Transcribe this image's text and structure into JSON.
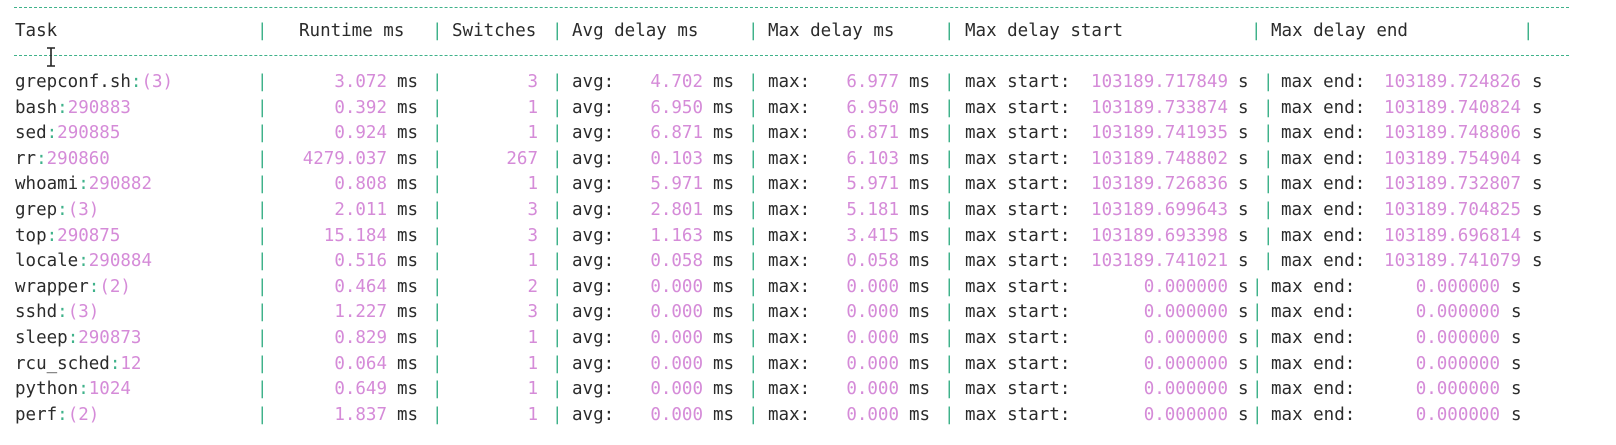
{
  "colors": {
    "separator": "#3fb28a",
    "value": "#d58bd8",
    "text": "#2b2b2b",
    "background": "#ffffff"
  },
  "header": {
    "task": "Task",
    "runtime": "Runtime ms",
    "switches": "Switches",
    "avg_delay": "Avg delay ms",
    "max_delay": "Max delay ms",
    "max_delay_start": "Max delay start",
    "max_delay_end": "Max delay end"
  },
  "labels": {
    "ms": "ms",
    "s": "s",
    "avg": "avg:",
    "max": "max:",
    "max_start": "max start:",
    "max_end": "max end:"
  },
  "rows": [
    {
      "name": "grepconf.sh",
      "sep": ":",
      "id": "(3)",
      "runtime": "3.072",
      "switches": "3",
      "avg": "4.702",
      "max": "6.977",
      "start": "103189.717849",
      "end": "103189.724826"
    },
    {
      "name": "bash",
      "sep": ":",
      "id": "290883",
      "runtime": "0.392",
      "switches": "1",
      "avg": "6.950",
      "max": "6.950",
      "start": "103189.733874",
      "end": "103189.740824"
    },
    {
      "name": "sed",
      "sep": ":",
      "id": "290885",
      "runtime": "0.924",
      "switches": "1",
      "avg": "6.871",
      "max": "6.871",
      "start": "103189.741935",
      "end": "103189.748806"
    },
    {
      "name": "rr",
      "sep": ":",
      "id": "290860",
      "runtime": "4279.037",
      "switches": "267",
      "avg": "0.103",
      "max": "6.103",
      "start": "103189.748802",
      "end": "103189.754904"
    },
    {
      "name": "whoami",
      "sep": ":",
      "id": "290882",
      "runtime": "0.808",
      "switches": "1",
      "avg": "5.971",
      "max": "5.971",
      "start": "103189.726836",
      "end": "103189.732807"
    },
    {
      "name": "grep",
      "sep": ":",
      "id": "(3)",
      "runtime": "2.011",
      "switches": "3",
      "avg": "2.801",
      "max": "5.181",
      "start": "103189.699643",
      "end": "103189.704825"
    },
    {
      "name": "top",
      "sep": ":",
      "id": "290875",
      "runtime": "15.184",
      "switches": "3",
      "avg": "1.163",
      "max": "3.415",
      "start": "103189.693398",
      "end": "103189.696814"
    },
    {
      "name": "locale",
      "sep": ":",
      "id": "290884",
      "runtime": "0.516",
      "switches": "1",
      "avg": "0.058",
      "max": "0.058",
      "start": "103189.741021",
      "end": "103189.741079"
    },
    {
      "name": "wrapper",
      "sep": ":",
      "id": "(2)",
      "runtime": "0.464",
      "switches": "2",
      "avg": "0.000",
      "max": "0.000",
      "start": "0.000000",
      "end": "0.000000"
    },
    {
      "name": "sshd",
      "sep": ":",
      "id": "(3)",
      "runtime": "1.227",
      "switches": "3",
      "avg": "0.000",
      "max": "0.000",
      "start": "0.000000",
      "end": "0.000000"
    },
    {
      "name": "sleep",
      "sep": ":",
      "id": "290873",
      "runtime": "0.829",
      "switches": "1",
      "avg": "0.000",
      "max": "0.000",
      "start": "0.000000",
      "end": "0.000000"
    },
    {
      "name": "rcu_sched",
      "sep": ":",
      "id": "12",
      "runtime": "0.064",
      "switches": "1",
      "avg": "0.000",
      "max": "0.000",
      "start": "0.000000",
      "end": "0.000000"
    },
    {
      "name": "python",
      "sep": ":",
      "id": "1024",
      "runtime": "0.649",
      "switches": "1",
      "avg": "0.000",
      "max": "0.000",
      "start": "0.000000",
      "end": "0.000000"
    },
    {
      "name": "perf",
      "sep": ":",
      "id": "(2)",
      "runtime": "1.837",
      "switches": "1",
      "avg": "0.000",
      "max": "0.000",
      "start": "0.000000",
      "end": "0.000000"
    }
  ]
}
